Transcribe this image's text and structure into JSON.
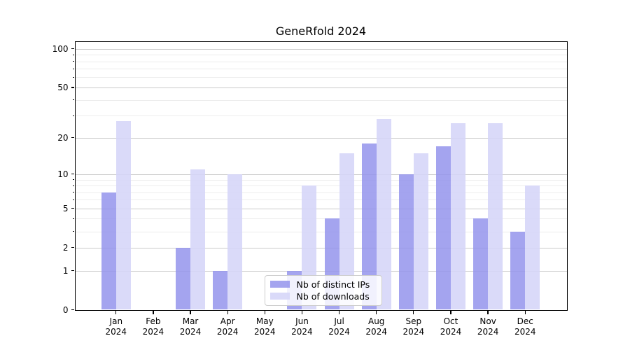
{
  "title": "GeneRfold 2024",
  "chart_data": {
    "type": "bar",
    "title": "GeneRfold 2024",
    "categories": [
      "Jan",
      "Feb",
      "Mar",
      "Apr",
      "May",
      "Jun",
      "Jul",
      "Aug",
      "Sep",
      "Oct",
      "Nov",
      "Dec"
    ],
    "category_year": "2024",
    "series": [
      {
        "name": "Nb of distinct IPs",
        "color": "rgba(148,148,236,0.85)",
        "values": [
          7,
          0,
          2,
          1,
          0,
          1,
          4,
          18,
          10,
          17,
          4,
          3
        ]
      },
      {
        "name": "Nb of downloads",
        "color": "rgba(213,213,248,0.88)",
        "values": [
          27,
          0,
          11,
          10,
          0,
          8,
          15,
          28,
          15,
          26,
          26,
          8
        ]
      }
    ],
    "yscale": "log1p",
    "ytick_labels": [
      0,
      1,
      2,
      5,
      10,
      20,
      50,
      100
    ],
    "yminor_ticks": [
      3,
      4,
      6,
      7,
      8,
      9,
      30,
      40,
      60,
      70,
      80,
      90
    ],
    "ylim": [
      0,
      115
    ],
    "xlabel": "",
    "ylabel": "",
    "grid": true,
    "legend_position": "lower center inside",
    "colors": {
      "major_grid": "#cbcbcb",
      "minor_grid": "#ececec",
      "axis": "#000000",
      "background": "#ffffff"
    }
  }
}
